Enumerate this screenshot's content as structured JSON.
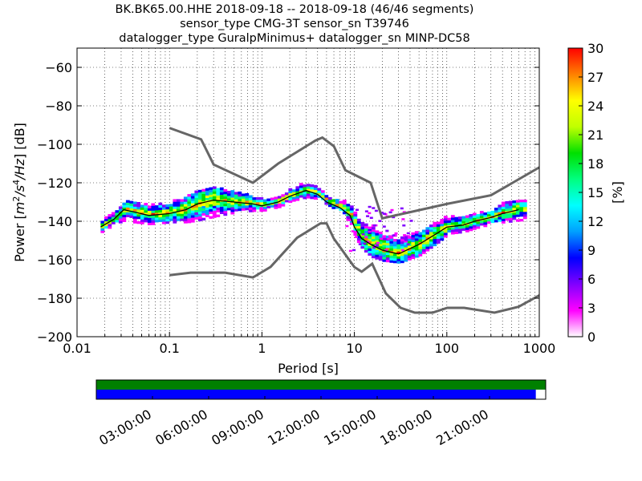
{
  "chart_data": [
    {
      "type": "heatmap",
      "title": [
        "BK.BK65.00.HHE   2018-09-18 -- 2018-09-18  (46/46 segments)",
        "sensor_type CMG-3T sensor_sn T39746",
        "datalogger_type GuralpMinimus+ datalogger_sn MINP-DC58"
      ],
      "xlabel": "Period [s]",
      "ylabel_parts": {
        "prefix": "Power [",
        "m": "m",
        "e2": "2",
        "s": "/s",
        "e4": "4",
        "hz": "/Hz",
        "suffix": "] [dB]"
      },
      "x_scale": "log",
      "xlim": [
        0.01,
        1000
      ],
      "ylim": [
        -200,
        -50
      ],
      "x_ticks": [
        0.01,
        0.1,
        1,
        10,
        100,
        1000
      ],
      "x_tick_labels": [
        "0.01",
        "0.1",
        "1",
        "10",
        "100",
        "1000"
      ],
      "y_ticks": [
        -200,
        -180,
        -160,
        -140,
        -120,
        -100,
        -80,
        -60
      ],
      "y_tick_labels": [
        "−200",
        "−180",
        "−160",
        "−140",
        "−120",
        "−100",
        "−80",
        "−60"
      ],
      "grid": true,
      "colorbar": {
        "label": "[%]",
        "range": [
          0,
          30
        ],
        "ticks": [
          0,
          3,
          6,
          9,
          12,
          15,
          18,
          21,
          24,
          27,
          30
        ],
        "tick_labels": [
          "0",
          "3",
          "6",
          "9",
          "12",
          "15",
          "18",
          "21",
          "24",
          "27",
          "30"
        ],
        "colors": [
          "#ffffff",
          "#ff00ff",
          "#8000ff",
          "#0000ff",
          "#00a0ff",
          "#00ffff",
          "#00ff80",
          "#00e000",
          "#c0ff00",
          "#ffff00",
          "#ff8000",
          "#ff0000"
        ]
      },
      "mean_curve": {
        "x": [
          0.018,
          0.025,
          0.032,
          0.04,
          0.06,
          0.1,
          0.15,
          0.2,
          0.3,
          0.5,
          0.8,
          1,
          1.5,
          2,
          3,
          4,
          5,
          7,
          9,
          10,
          12,
          15,
          20,
          30,
          50,
          80,
          100,
          150,
          200,
          300,
          400,
          600
        ],
        "y": [
          -143,
          -139,
          -134,
          -135,
          -137,
          -136,
          -134,
          -131,
          -129,
          -130,
          -131,
          -132,
          -130,
          -127,
          -124,
          -126,
          -130,
          -133,
          -137,
          -143,
          -149,
          -152,
          -155,
          -157,
          -152,
          -146,
          -143,
          -142,
          -140,
          -138,
          -136,
          -134
        ]
      },
      "noise_models": [
        {
          "x": [
            0.1,
            0.22,
            0.3,
            0.8,
            1.5,
            3.8,
            4.5,
            6,
            8,
            15,
            20,
            100,
            300,
            1000
          ],
          "y": [
            -91.5,
            -97.4,
            -110.5,
            -120,
            -110,
            -98,
            -96.5,
            -101,
            -113.5,
            -120,
            -138.5,
            -131,
            -126.5,
            -112
          ]
        },
        {
          "x": [
            0.1,
            0.17,
            0.4,
            0.8,
            1.24,
            2.4,
            4.3,
            5,
            6,
            10,
            12,
            15.6,
            21.9,
            31.6,
            45,
            70,
            101,
            154,
            328,
            600,
            1000
          ],
          "y": [
            -168,
            -166.7,
            -166.7,
            -169.2,
            -163.7,
            -148.6,
            -141.1,
            -141.1,
            -149,
            -163.8,
            -166.2,
            -162.1,
            -177.5,
            -185,
            -187.5,
            -187.5,
            -185,
            -185,
            -187.5,
            -184.4,
            -178.5
          ]
        }
      ],
      "pdf_bands": [
        {
          "x": [
            0.018,
            0.025,
            0.032,
            0.04,
            0.06,
            0.1,
            0.15,
            0.2,
            0.3,
            0.5,
            0.8,
            1,
            1.5,
            2,
            3,
            4,
            5,
            7,
            9,
            10,
            12,
            15,
            20,
            30,
            50,
            80,
            100,
            150,
            200,
            300,
            400,
            600
          ],
          "upper": [
            -141,
            -136,
            -131,
            -132,
            -133,
            -131,
            -128,
            -125,
            -124,
            -126,
            -128,
            -130,
            -128,
            -124,
            -121,
            -123,
            -127,
            -130,
            -133,
            -138,
            -142,
            -143,
            -146,
            -150,
            -146,
            -140,
            -139,
            -138,
            -137,
            -135,
            -131,
            -131
          ],
          "lower": [
            -145,
            -141,
            -139,
            -140,
            -141,
            -140,
            -140,
            -139,
            -137,
            -135,
            -134,
            -134,
            -132,
            -129,
            -127,
            -128,
            -131,
            -135,
            -141,
            -148,
            -154,
            -158,
            -160,
            -161,
            -157,
            -150,
            -146,
            -145,
            -143,
            -141,
            -140,
            -139
          ]
        }
      ]
    },
    {
      "type": "bar",
      "title": "",
      "x_tick_labels": [
        "03:00:00",
        "06:00:00",
        "09:00:00",
        "12:00:00",
        "15:00:00",
        "18:00:00",
        "21:00:00"
      ],
      "series": [
        {
          "color": "#008000",
          "coverage": [
            0,
            1
          ]
        },
        {
          "color": "#0000ff",
          "coverage": [
            0,
            0.978
          ]
        }
      ]
    }
  ]
}
